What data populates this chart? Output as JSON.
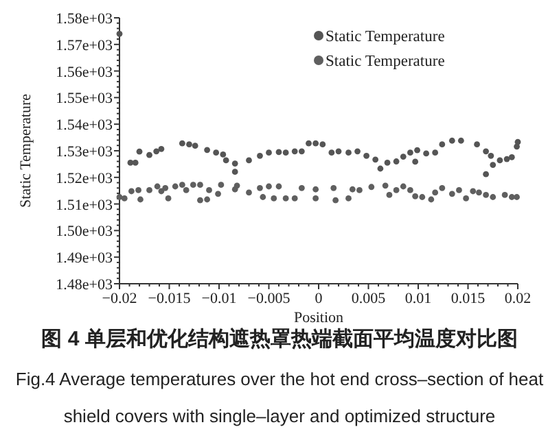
{
  "chart_data": {
    "type": "scatter",
    "xlabel": "Position",
    "ylabel": "Static Temperature",
    "annotations": [
      "图 4 单层和优化结构遮热罩热端截面平均温度对比图",
      "Fig.4 Average temperatures over the hot end cross–section of heat shield covers with single–layer and optimized structure"
    ],
    "xlim": [
      -0.02,
      0.02
    ],
    "xticks": [
      -0.02,
      -0.015,
      -0.01,
      -0.005,
      0,
      0.005,
      0.01,
      0.015,
      0.02
    ],
    "ylim": [
      1480,
      1580
    ],
    "yticks": [
      {
        "value": 1480,
        "label": "1.48e+03"
      },
      {
        "value": 1490,
        "label": "1.49e+03"
      },
      {
        "value": 1500,
        "label": "1.50e+03"
      },
      {
        "value": 1510,
        "label": "1.51e+03"
      },
      {
        "value": 1520,
        "label": "1.52e+03"
      },
      {
        "value": 1530,
        "label": "1.53e+03"
      },
      {
        "value": 1540,
        "label": "1.54e+03"
      },
      {
        "value": 1550,
        "label": "1.55e+03"
      },
      {
        "value": 1560,
        "label": "1.56e+03"
      },
      {
        "value": 1570,
        "label": "1.57e+03"
      },
      {
        "value": 1580,
        "label": "1.58e+03"
      }
    ],
    "grid": false,
    "legend": "top right",
    "marker": "circle",
    "series": [
      {
        "name": "Static Temperature",
        "color": "#555555",
        "x": [
          -0.02,
          -0.0189,
          -0.0184,
          -0.018,
          -0.017,
          -0.0163,
          -0.0158,
          -0.0137,
          -0.013,
          -0.0124,
          -0.0112,
          -0.0103,
          -0.0096,
          -0.0093,
          -0.0084,
          -0.0084,
          -0.007,
          -0.0059,
          -0.005,
          -0.004,
          -0.0033,
          -0.0024,
          -0.0017,
          -0.001,
          -0.0003,
          0.0004,
          0.0013,
          0.002,
          0.003,
          0.0039,
          0.0048,
          0.0057,
          0.0062,
          0.0069,
          0.0078,
          0.0085,
          0.0092,
          0.0099,
          0.0097,
          0.0108,
          0.0117,
          0.0124,
          0.0134,
          0.0143,
          0.0159,
          0.0168,
          0.0173,
          0.0168,
          0.0175,
          0.0182,
          0.0189,
          0.0194,
          0.0199,
          0.02
        ],
        "values": [
          1574,
          1525.5,
          1525.5,
          1529.7,
          1528.4,
          1529.8,
          1530.7,
          1532.8,
          1532.4,
          1531.9,
          1530.3,
          1529.3,
          1528.6,
          1526.4,
          1525.2,
          1522.1,
          1526.4,
          1528.1,
          1529.3,
          1529.5,
          1529.3,
          1529.8,
          1529.8,
          1532.8,
          1532.8,
          1532.4,
          1529.3,
          1529.8,
          1529.3,
          1529.8,
          1528.1,
          1526.7,
          1523.3,
          1525.5,
          1526,
          1527.8,
          1529.3,
          1530.2,
          1525.9,
          1529,
          1529.3,
          1532.4,
          1533.8,
          1533.8,
          1532.4,
          1529.8,
          1528.1,
          1521.2,
          1524.7,
          1526.4,
          1526.9,
          1527.6,
          1531.6,
          1533.3
        ]
      },
      {
        "name": "Static Temperature",
        "color": "#5f5f5f",
        "x": [
          -0.02,
          -0.0195,
          -0.0188,
          -0.0181,
          -0.0179,
          -0.017,
          -0.0162,
          -0.0158,
          -0.0154,
          -0.0151,
          -0.0144,
          -0.0137,
          -0.0133,
          -0.0126,
          -0.0119,
          -0.0119,
          -0.0112,
          -0.011,
          -0.0101,
          -0.0098,
          -0.0084,
          -0.0082,
          -0.007,
          -0.0059,
          -0.0056,
          -0.005,
          -0.0045,
          -0.004,
          -0.0033,
          -0.0024,
          -0.0017,
          -0.0003,
          -0.0003,
          0.0015,
          0.0017,
          0.003,
          0.0034,
          0.0041,
          0.0053,
          0.0067,
          0.0071,
          0.0078,
          0.0085,
          0.0092,
          0.0097,
          0.0104,
          0.0113,
          0.0117,
          0.0124,
          0.0134,
          0.0141,
          0.0148,
          0.0155,
          0.0161,
          0.0168,
          0.0175,
          0.0187,
          0.0194,
          0.0199
        ],
        "values": [
          1512.6,
          1512.1,
          1514.8,
          1515.2,
          1511.7,
          1515.2,
          1516.6,
          1514.8,
          1516,
          1512.1,
          1516.6,
          1517.2,
          1515.2,
          1517.2,
          1517.2,
          1511.4,
          1511.7,
          1515.2,
          1513.8,
          1517.2,
          1515.5,
          1516.9,
          1514.3,
          1516,
          1512.6,
          1516.6,
          1512.1,
          1516.6,
          1512.1,
          1512.1,
          1516,
          1515.5,
          1512.1,
          1516,
          1511.4,
          1512.1,
          1515.5,
          1515.2,
          1516.4,
          1516.9,
          1513.4,
          1515.2,
          1516.6,
          1515.2,
          1512.9,
          1512.6,
          1511.7,
          1514.3,
          1516,
          1513.8,
          1515.2,
          1512.1,
          1514.8,
          1514.3,
          1513.4,
          1512.6,
          1513.4,
          1512.6,
          1512.6
        ]
      }
    ]
  }
}
